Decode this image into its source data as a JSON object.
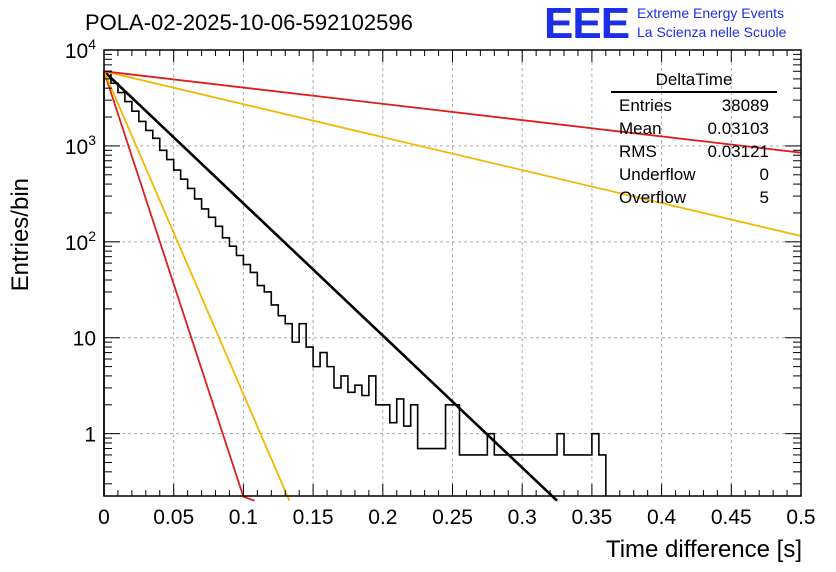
{
  "title": "POLA-02-2025-10-06-592102596",
  "logo": {
    "text": "EEE",
    "line1": "Extreme Energy Events",
    "line2": "La Scienza nelle Scuole"
  },
  "stats": {
    "name": "DeltaTime",
    "rows": [
      {
        "label": "Entries",
        "value": "38089"
      },
      {
        "label": "Mean",
        "value": "0.03103"
      },
      {
        "label": "RMS",
        "value": "0.03121"
      },
      {
        "label": "Underflow",
        "value": "0"
      },
      {
        "label": "Overflow",
        "value": "5"
      }
    ]
  },
  "chart_data": {
    "type": "line",
    "title": "POLA-02-2025-10-06-592102596",
    "xlabel": "Time difference [s]",
    "ylabel": "Entries/bin",
    "xlim": [
      0,
      0.5
    ],
    "ylim_log10": [
      -0.65,
      4.0
    ],
    "yscale": "log",
    "grid": true,
    "x_ticks": [
      0,
      0.05,
      0.1,
      0.15,
      0.2,
      0.25,
      0.3,
      0.35,
      0.4,
      0.45,
      0.5
    ],
    "x_tick_labels": [
      "0",
      "0.05",
      "0.1",
      "0.15",
      "0.2",
      "0.25",
      "0.3",
      "0.35",
      "0.4",
      "0.45",
      "0.5"
    ],
    "y_ticks": [
      1,
      10,
      100,
      1000,
      10000
    ],
    "y_tick_labels": [
      "1",
      "10",
      "10^2",
      "10^3",
      "10^4"
    ],
    "histogram": {
      "bin_width": 0.005,
      "color": "#000000",
      "counts": [
        6000,
        4500,
        3600,
        2900,
        2300,
        1800,
        1450,
        1200,
        900,
        720,
        560,
        450,
        360,
        280,
        220,
        180,
        145,
        110,
        90,
        72,
        58,
        48,
        35,
        30,
        22,
        17,
        14,
        9,
        14,
        8,
        5,
        7,
        5,
        3,
        4,
        2.7,
        3.2,
        2.5,
        4,
        2,
        2,
        1.3,
        2.3,
        1.2,
        2,
        0.7,
        0.7,
        0.7,
        0.7,
        2,
        2,
        0.6,
        0.6,
        0.6,
        0.6,
        1,
        0.6,
        0.6,
        0.6,
        0.6,
        0.6,
        0.6,
        0.6,
        0.6,
        0.6,
        1,
        0.6,
        0.6,
        0.6,
        0.6,
        1,
        0.6
      ]
    },
    "series": [
      {
        "name": "fit",
        "color": "#000000",
        "width": 2.6,
        "x": [
          0,
          0.325
        ],
        "y": [
          6000,
          0.2
        ]
      },
      {
        "name": "fast-red",
        "color": "#dc1e1e",
        "width": 1.8,
        "x": [
          0,
          0.1,
          0.108
        ],
        "y": [
          6000,
          0.22,
          0.2
        ]
      },
      {
        "name": "fast-yellow",
        "color": "#f2b800",
        "width": 1.8,
        "x": [
          0,
          0.133
        ],
        "y": [
          6000,
          0.2
        ]
      },
      {
        "name": "slow-yellow",
        "color": "#f2b800",
        "width": 1.8,
        "x": [
          0,
          0.5
        ],
        "y": [
          6000,
          115
        ]
      },
      {
        "name": "slow-red",
        "color": "#dc1e1e",
        "width": 1.8,
        "x": [
          0,
          0.5
        ],
        "y": [
          6000,
          850
        ]
      }
    ]
  }
}
